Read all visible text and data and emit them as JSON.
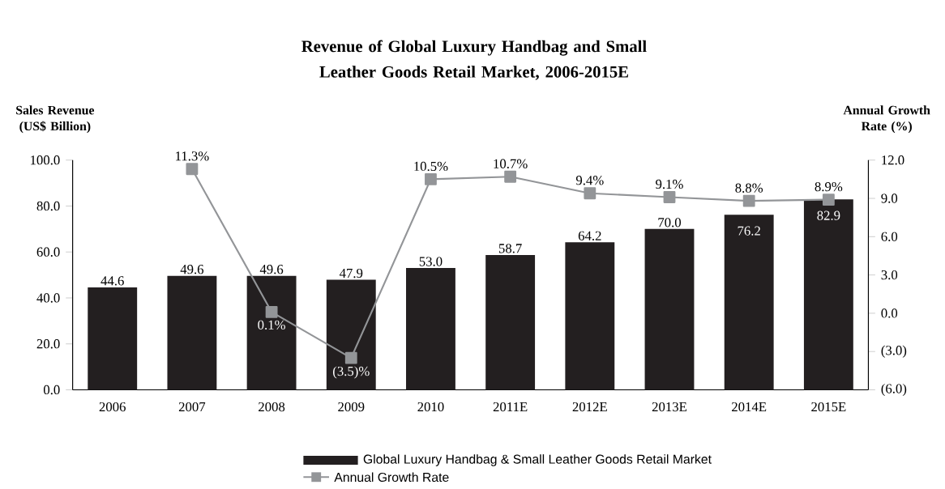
{
  "chart_data": {
    "type": "bar",
    "title": "Revenue of Global Luxury Handbag and Small Leather Goods Retail Market, 2006-2015E",
    "ylabel": "Sales Revenue (US$ Billion)",
    "y2label": "Annual Growth Rate (%)",
    "categories": [
      "2006",
      "2007",
      "2008",
      "2009",
      "2010",
      "2011E",
      "2012E",
      "2013E",
      "2014E",
      "2015E"
    ],
    "series": [
      {
        "name": "Global Luxury Handbag & Small Leather Goods Retail Market",
        "color": "#231f20",
        "values": [
          44.6,
          49.6,
          49.6,
          47.9,
          53.0,
          58.7,
          64.2,
          70.0,
          76.2,
          82.9
        ],
        "value_labels": [
          "44.6",
          "49.6",
          "49.6",
          "47.9",
          "53.0",
          "58.7",
          "64.2",
          "70.0",
          "76.2",
          "82.9"
        ]
      },
      {
        "name": "Annual Growth Rate",
        "type": "line",
        "axis": "y2",
        "marker": "square",
        "color": "#939598",
        "values": [
          null,
          11.3,
          0.1,
          -3.5,
          10.5,
          10.7,
          9.4,
          9.1,
          8.8,
          8.9
        ],
        "value_labels": [
          null,
          "11.3%",
          "0.1%",
          "(3.5)%",
          "10.5%",
          "10.7%",
          "9.4%",
          "9.1%",
          "8.8%",
          "8.9%"
        ]
      }
    ],
    "ylim": [
      0,
      100
    ],
    "yticks": [
      {
        "value": 0,
        "label": "0.0"
      },
      {
        "value": 20,
        "label": "20.0"
      },
      {
        "value": 40,
        "label": "40.0"
      },
      {
        "value": 60,
        "label": "60.0"
      },
      {
        "value": 80,
        "label": "80.0"
      },
      {
        "value": 100,
        "label": "100.0"
      }
    ],
    "y2lim": [
      -6,
      12
    ],
    "y2ticks": [
      {
        "value": -6,
        "label": "(6.0)"
      },
      {
        "value": -3,
        "label": "(3.0)"
      },
      {
        "value": 0,
        "label": "0.0"
      },
      {
        "value": 3,
        "label": "3.0"
      },
      {
        "value": 6,
        "label": "6.0"
      },
      {
        "value": 9,
        "label": "9.0"
      },
      {
        "value": 12,
        "label": "12.0"
      }
    ],
    "legend": "bottom"
  }
}
